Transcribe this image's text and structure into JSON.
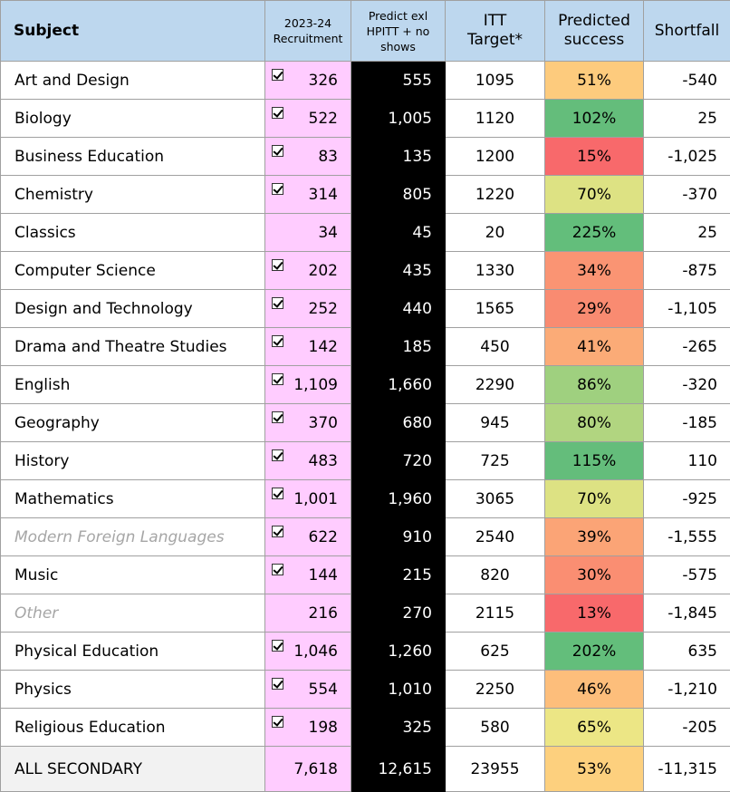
{
  "header": {
    "subject": "Subject",
    "recruitment_line1": "2023-24",
    "recruitment_line2": "Recruitment",
    "predict_line1": "Predict exl",
    "predict_line2": "HPITT + no",
    "predict_line3": "shows",
    "itt_line1": "ITT",
    "itt_line2": "Target*",
    "success_line1": "Predicted",
    "success_line2": "success",
    "shortfall": "Shortfall"
  },
  "rows": [
    {
      "subject": "Art and Design",
      "checked": true,
      "muted": false,
      "recruitment": "326",
      "predict": "555",
      "itt": "1095",
      "success": "51%",
      "success_color": "#fdcb7d",
      "shortfall": "-540"
    },
    {
      "subject": "Biology",
      "checked": true,
      "muted": false,
      "recruitment": "522",
      "predict": "1,005",
      "itt": "1120",
      "success": "102%",
      "success_color": "#64bd7b",
      "shortfall": "25"
    },
    {
      "subject": "Business Education",
      "checked": true,
      "muted": false,
      "recruitment": "83",
      "predict": "135",
      "itt": "1200",
      "success": "15%",
      "success_color": "#f8696b",
      "shortfall": "-1,025"
    },
    {
      "subject": "Chemistry",
      "checked": true,
      "muted": false,
      "recruitment": "314",
      "predict": "805",
      "itt": "1220",
      "success": "70%",
      "success_color": "#dde283",
      "shortfall": "-370"
    },
    {
      "subject": "Classics",
      "checked": false,
      "muted": false,
      "recruitment": "34",
      "predict": "45",
      "itt": "20",
      "success": "225%",
      "success_color": "#63be7b",
      "shortfall": "25"
    },
    {
      "subject": "Computer Science",
      "checked": true,
      "muted": false,
      "recruitment": "202",
      "predict": "435",
      "itt": "1330",
      "success": "34%",
      "success_color": "#fa9473",
      "shortfall": "-875"
    },
    {
      "subject": "Design and Technology",
      "checked": true,
      "muted": false,
      "recruitment": "252",
      "predict": "440",
      "itt": "1565",
      "success": "29%",
      "success_color": "#f98b71",
      "shortfall": "-1,105"
    },
    {
      "subject": "Drama and Theatre Studies",
      "checked": true,
      "muted": false,
      "recruitment": "142",
      "predict": "185",
      "itt": "450",
      "success": "41%",
      "success_color": "#fbab77",
      "shortfall": "-265"
    },
    {
      "subject": "English",
      "checked": true,
      "muted": false,
      "recruitment": "1,109",
      "predict": "1,660",
      "itt": "2290",
      "success": "86%",
      "success_color": "#9fd07f",
      "shortfall": "-320"
    },
    {
      "subject": "Geography",
      "checked": true,
      "muted": false,
      "recruitment": "370",
      "predict": "680",
      "itt": "945",
      "success": "80%",
      "success_color": "#b1d580",
      "shortfall": "-185"
    },
    {
      "subject": "History",
      "checked": true,
      "muted": false,
      "recruitment": "483",
      "predict": "720",
      "itt": "725",
      "success": "115%",
      "success_color": "#64bd7b",
      "shortfall": "110"
    },
    {
      "subject": "Mathematics",
      "checked": true,
      "muted": false,
      "recruitment": "1,001",
      "predict": "1,960",
      "itt": "3065",
      "success": "70%",
      "success_color": "#dde283",
      "shortfall": "-925"
    },
    {
      "subject": "Modern Foreign Languages",
      "checked": true,
      "muted": true,
      "recruitment": "622",
      "predict": "910",
      "itt": "2540",
      "success": "39%",
      "success_color": "#fba476",
      "shortfall": "-1,555"
    },
    {
      "subject": "Music",
      "checked": true,
      "muted": false,
      "recruitment": "144",
      "predict": "215",
      "itt": "820",
      "success": "30%",
      "success_color": "#fa8e72",
      "shortfall": "-575"
    },
    {
      "subject": "Other",
      "checked": false,
      "muted": true,
      "recruitment": "216",
      "predict": "270",
      "itt": "2115",
      "success": "13%",
      "success_color": "#f8696b",
      "shortfall": "-1,845"
    },
    {
      "subject": "Physical Education",
      "checked": true,
      "muted": false,
      "recruitment": "1,046",
      "predict": "1,260",
      "itt": "625",
      "success": "202%",
      "success_color": "#63be7b",
      "shortfall": "635"
    },
    {
      "subject": "Physics",
      "checked": true,
      "muted": false,
      "recruitment": "554",
      "predict": "1,010",
      "itt": "2250",
      "success": "46%",
      "success_color": "#fdbe7b",
      "shortfall": "-1,210"
    },
    {
      "subject": "Religious Education",
      "checked": true,
      "muted": false,
      "recruitment": "198",
      "predict": "325",
      "itt": "580",
      "success": "65%",
      "success_color": "#ece685",
      "shortfall": "-205"
    }
  ],
  "total": {
    "subject": "ALL SECONDARY",
    "recruitment": "7,618",
    "predict": "12,615",
    "itt": "23955",
    "success": "53%",
    "success_color": "#fdd07e",
    "shortfall": "-11,315"
  }
}
